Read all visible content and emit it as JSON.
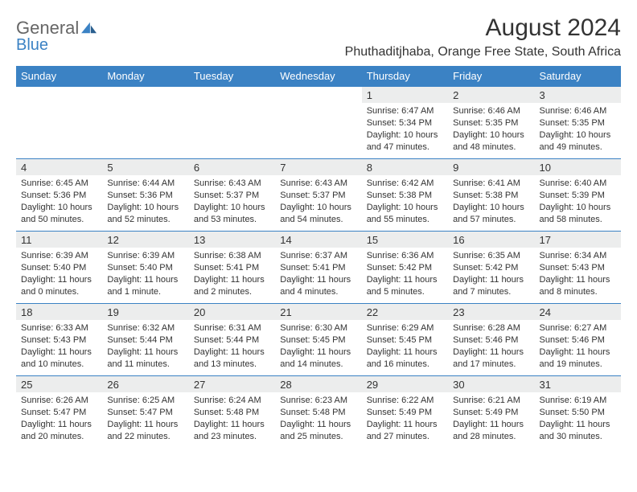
{
  "brand": {
    "word1": "General",
    "word2": "Blue"
  },
  "title": "August 2024",
  "location": "Phuthaditjhaba, Orange Free State, South Africa",
  "colors": {
    "header_bg": "#3b82c4",
    "header_text": "#ffffff",
    "daynum_bg": "#eceded",
    "text": "#333333",
    "logo_grey": "#666666",
    "logo_blue": "#3b82c4"
  },
  "weekdays": [
    "Sunday",
    "Monday",
    "Tuesday",
    "Wednesday",
    "Thursday",
    "Friday",
    "Saturday"
  ],
  "weeks": [
    [
      null,
      null,
      null,
      null,
      {
        "n": "1",
        "sr": "Sunrise: 6:47 AM",
        "ss": "Sunset: 5:34 PM",
        "d1": "Daylight: 10 hours",
        "d2": "and 47 minutes."
      },
      {
        "n": "2",
        "sr": "Sunrise: 6:46 AM",
        "ss": "Sunset: 5:35 PM",
        "d1": "Daylight: 10 hours",
        "d2": "and 48 minutes."
      },
      {
        "n": "3",
        "sr": "Sunrise: 6:46 AM",
        "ss": "Sunset: 5:35 PM",
        "d1": "Daylight: 10 hours",
        "d2": "and 49 minutes."
      }
    ],
    [
      {
        "n": "4",
        "sr": "Sunrise: 6:45 AM",
        "ss": "Sunset: 5:36 PM",
        "d1": "Daylight: 10 hours",
        "d2": "and 50 minutes."
      },
      {
        "n": "5",
        "sr": "Sunrise: 6:44 AM",
        "ss": "Sunset: 5:36 PM",
        "d1": "Daylight: 10 hours",
        "d2": "and 52 minutes."
      },
      {
        "n": "6",
        "sr": "Sunrise: 6:43 AM",
        "ss": "Sunset: 5:37 PM",
        "d1": "Daylight: 10 hours",
        "d2": "and 53 minutes."
      },
      {
        "n": "7",
        "sr": "Sunrise: 6:43 AM",
        "ss": "Sunset: 5:37 PM",
        "d1": "Daylight: 10 hours",
        "d2": "and 54 minutes."
      },
      {
        "n": "8",
        "sr": "Sunrise: 6:42 AM",
        "ss": "Sunset: 5:38 PM",
        "d1": "Daylight: 10 hours",
        "d2": "and 55 minutes."
      },
      {
        "n": "9",
        "sr": "Sunrise: 6:41 AM",
        "ss": "Sunset: 5:38 PM",
        "d1": "Daylight: 10 hours",
        "d2": "and 57 minutes."
      },
      {
        "n": "10",
        "sr": "Sunrise: 6:40 AM",
        "ss": "Sunset: 5:39 PM",
        "d1": "Daylight: 10 hours",
        "d2": "and 58 minutes."
      }
    ],
    [
      {
        "n": "11",
        "sr": "Sunrise: 6:39 AM",
        "ss": "Sunset: 5:40 PM",
        "d1": "Daylight: 11 hours",
        "d2": "and 0 minutes."
      },
      {
        "n": "12",
        "sr": "Sunrise: 6:39 AM",
        "ss": "Sunset: 5:40 PM",
        "d1": "Daylight: 11 hours",
        "d2": "and 1 minute."
      },
      {
        "n": "13",
        "sr": "Sunrise: 6:38 AM",
        "ss": "Sunset: 5:41 PM",
        "d1": "Daylight: 11 hours",
        "d2": "and 2 minutes."
      },
      {
        "n": "14",
        "sr": "Sunrise: 6:37 AM",
        "ss": "Sunset: 5:41 PM",
        "d1": "Daylight: 11 hours",
        "d2": "and 4 minutes."
      },
      {
        "n": "15",
        "sr": "Sunrise: 6:36 AM",
        "ss": "Sunset: 5:42 PM",
        "d1": "Daylight: 11 hours",
        "d2": "and 5 minutes."
      },
      {
        "n": "16",
        "sr": "Sunrise: 6:35 AM",
        "ss": "Sunset: 5:42 PM",
        "d1": "Daylight: 11 hours",
        "d2": "and 7 minutes."
      },
      {
        "n": "17",
        "sr": "Sunrise: 6:34 AM",
        "ss": "Sunset: 5:43 PM",
        "d1": "Daylight: 11 hours",
        "d2": "and 8 minutes."
      }
    ],
    [
      {
        "n": "18",
        "sr": "Sunrise: 6:33 AM",
        "ss": "Sunset: 5:43 PM",
        "d1": "Daylight: 11 hours",
        "d2": "and 10 minutes."
      },
      {
        "n": "19",
        "sr": "Sunrise: 6:32 AM",
        "ss": "Sunset: 5:44 PM",
        "d1": "Daylight: 11 hours",
        "d2": "and 11 minutes."
      },
      {
        "n": "20",
        "sr": "Sunrise: 6:31 AM",
        "ss": "Sunset: 5:44 PM",
        "d1": "Daylight: 11 hours",
        "d2": "and 13 minutes."
      },
      {
        "n": "21",
        "sr": "Sunrise: 6:30 AM",
        "ss": "Sunset: 5:45 PM",
        "d1": "Daylight: 11 hours",
        "d2": "and 14 minutes."
      },
      {
        "n": "22",
        "sr": "Sunrise: 6:29 AM",
        "ss": "Sunset: 5:45 PM",
        "d1": "Daylight: 11 hours",
        "d2": "and 16 minutes."
      },
      {
        "n": "23",
        "sr": "Sunrise: 6:28 AM",
        "ss": "Sunset: 5:46 PM",
        "d1": "Daylight: 11 hours",
        "d2": "and 17 minutes."
      },
      {
        "n": "24",
        "sr": "Sunrise: 6:27 AM",
        "ss": "Sunset: 5:46 PM",
        "d1": "Daylight: 11 hours",
        "d2": "and 19 minutes."
      }
    ],
    [
      {
        "n": "25",
        "sr": "Sunrise: 6:26 AM",
        "ss": "Sunset: 5:47 PM",
        "d1": "Daylight: 11 hours",
        "d2": "and 20 minutes."
      },
      {
        "n": "26",
        "sr": "Sunrise: 6:25 AM",
        "ss": "Sunset: 5:47 PM",
        "d1": "Daylight: 11 hours",
        "d2": "and 22 minutes."
      },
      {
        "n": "27",
        "sr": "Sunrise: 6:24 AM",
        "ss": "Sunset: 5:48 PM",
        "d1": "Daylight: 11 hours",
        "d2": "and 23 minutes."
      },
      {
        "n": "28",
        "sr": "Sunrise: 6:23 AM",
        "ss": "Sunset: 5:48 PM",
        "d1": "Daylight: 11 hours",
        "d2": "and 25 minutes."
      },
      {
        "n": "29",
        "sr": "Sunrise: 6:22 AM",
        "ss": "Sunset: 5:49 PM",
        "d1": "Daylight: 11 hours",
        "d2": "and 27 minutes."
      },
      {
        "n": "30",
        "sr": "Sunrise: 6:21 AM",
        "ss": "Sunset: 5:49 PM",
        "d1": "Daylight: 11 hours",
        "d2": "and 28 minutes."
      },
      {
        "n": "31",
        "sr": "Sunrise: 6:19 AM",
        "ss": "Sunset: 5:50 PM",
        "d1": "Daylight: 11 hours",
        "d2": "and 30 minutes."
      }
    ]
  ]
}
